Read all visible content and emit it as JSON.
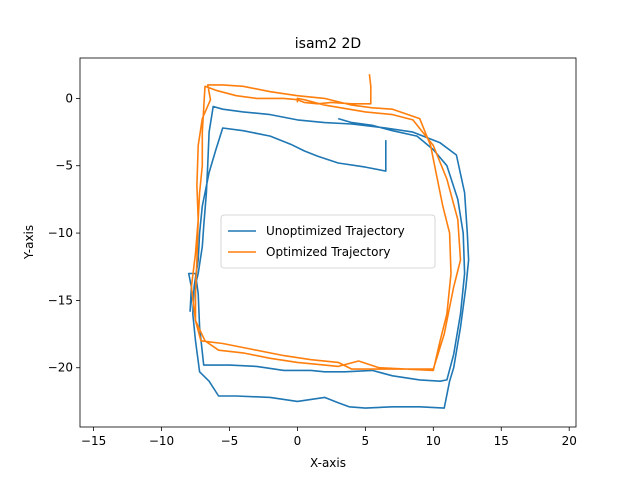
{
  "chart_data": {
    "type": "line",
    "title": "isam2 2D",
    "xlabel": "X-axis",
    "ylabel": "Y-axis",
    "xlim": [
      -16,
      20.5
    ],
    "ylim": [
      -24.4,
      3
    ],
    "xticks": [
      -15,
      -10,
      -5,
      0,
      5,
      10,
      15,
      20
    ],
    "yticks": [
      0,
      -5,
      -10,
      -15,
      -20
    ],
    "grid": false,
    "legend": {
      "position": "center"
    },
    "series": [
      {
        "name": "Unoptimized Trajectory",
        "color": "#1f77b4",
        "points": [
          [
            6.5,
            -3.1
          ],
          [
            6.5,
            -5.4
          ],
          [
            5.0,
            -5.1
          ],
          [
            3.0,
            -4.8
          ],
          [
            1.5,
            -4.3
          ],
          [
            0.5,
            -3.9
          ],
          [
            -0.5,
            -3.4
          ],
          [
            -2.0,
            -2.8
          ],
          [
            -4.0,
            -2.4
          ],
          [
            -5.5,
            -2.2
          ],
          [
            -6.0,
            -3.8
          ],
          [
            -6.5,
            -5.5
          ],
          [
            -7.0,
            -8.0
          ],
          [
            -7.2,
            -10.0
          ],
          [
            -7.3,
            -12.0
          ],
          [
            -7.6,
            -14.0
          ],
          [
            -7.7,
            -16.0
          ],
          [
            -7.5,
            -18.0
          ],
          [
            -7.2,
            -20.3
          ],
          [
            -6.5,
            -21.0
          ],
          [
            -5.8,
            -22.1
          ],
          [
            -4.5,
            -22.1
          ],
          [
            -2.0,
            -22.2
          ],
          [
            0.0,
            -22.5
          ],
          [
            2.0,
            -22.2
          ],
          [
            3.0,
            -22.6
          ],
          [
            3.8,
            -22.9
          ],
          [
            5.0,
            -23.0
          ],
          [
            7.0,
            -22.9
          ],
          [
            9.0,
            -22.9
          ],
          [
            10.8,
            -23.0
          ],
          [
            11.2,
            -21.0
          ],
          [
            11.5,
            -20.0
          ],
          [
            12.0,
            -17.0
          ],
          [
            12.4,
            -14.0
          ],
          [
            12.6,
            -12.0
          ],
          [
            12.5,
            -10.0
          ],
          [
            12.3,
            -7.0
          ],
          [
            11.7,
            -4.2
          ],
          [
            10.5,
            -3.3
          ],
          [
            8.5,
            -2.5
          ],
          [
            6.5,
            -2.2
          ],
          [
            4.0,
            -1.9
          ],
          [
            2.0,
            -1.8
          ],
          [
            0.0,
            -1.6
          ],
          [
            -2.0,
            -1.2
          ],
          [
            -4.0,
            -1.0
          ],
          [
            -5.5,
            -0.8
          ],
          [
            -6.2,
            -0.6
          ],
          [
            -6.5,
            -2.5
          ],
          [
            -6.6,
            -5.0
          ],
          [
            -6.7,
            -7.0
          ],
          [
            -6.9,
            -9.5
          ],
          [
            -7.0,
            -11.0
          ],
          [
            -7.3,
            -13.0
          ],
          [
            -7.8,
            -15.0
          ],
          [
            -7.9,
            -15.8
          ],
          [
            -7.8,
            -14.0
          ],
          [
            -8.0,
            -13.0
          ],
          [
            -7.5,
            -13.0
          ],
          [
            -7.3,
            -14.5
          ],
          [
            -7.2,
            -17.0
          ],
          [
            -6.9,
            -19.8
          ],
          [
            -5.0,
            -19.8
          ],
          [
            -3.0,
            -19.9
          ],
          [
            -1.0,
            -20.2
          ],
          [
            1.0,
            -20.2
          ],
          [
            2.0,
            -20.3
          ],
          [
            3.5,
            -20.3
          ],
          [
            5.5,
            -20.2
          ],
          [
            7.0,
            -20.6
          ],
          [
            9.0,
            -20.9
          ],
          [
            10.5,
            -21.0
          ],
          [
            11.0,
            -20.9
          ],
          [
            11.5,
            -19.0
          ],
          [
            12.0,
            -16.0
          ],
          [
            12.3,
            -13.0
          ],
          [
            12.2,
            -10.0
          ],
          [
            11.8,
            -7.5
          ],
          [
            11.0,
            -5.0
          ],
          [
            10.0,
            -3.8
          ],
          [
            8.8,
            -2.8
          ],
          [
            7.0,
            -2.4
          ],
          [
            5.5,
            -2.0
          ],
          [
            4.0,
            -1.8
          ],
          [
            3.0,
            -1.5
          ]
        ]
      },
      {
        "name": "Optimized Trajectory",
        "color": "#ff7f0e",
        "points": [
          [
            5.3,
            1.8
          ],
          [
            5.4,
            0.9
          ],
          [
            5.4,
            -0.4
          ],
          [
            4.0,
            -0.4
          ],
          [
            2.5,
            -0.3
          ],
          [
            1.5,
            -0.4
          ],
          [
            0.5,
            -0.3
          ],
          [
            0.0,
            -0.1
          ],
          [
            -1.0,
            0.0
          ],
          [
            -3.0,
            0.0
          ],
          [
            -4.5,
            0.2
          ],
          [
            -6.0,
            0.6
          ],
          [
            -6.8,
            0.9
          ],
          [
            -7.0,
            -2.5
          ],
          [
            -7.0,
            -5.0
          ],
          [
            -7.2,
            -7.0
          ],
          [
            -7.3,
            -9.0
          ],
          [
            -7.4,
            -12.0
          ],
          [
            -7.5,
            -14.5
          ],
          [
            -7.5,
            -16.5
          ],
          [
            -7.1,
            -18.0
          ],
          [
            -5.5,
            -18.2
          ],
          [
            -3.5,
            -18.6
          ],
          [
            -1.0,
            -19.1
          ],
          [
            1.0,
            -19.4
          ],
          [
            3.0,
            -19.6
          ],
          [
            4.0,
            -20.1
          ],
          [
            6.0,
            -20.1
          ],
          [
            8.0,
            -20.1
          ],
          [
            10.0,
            -20.2
          ],
          [
            10.5,
            -18.0
          ],
          [
            11.0,
            -16.0
          ],
          [
            11.3,
            -13.0
          ],
          [
            11.2,
            -10.0
          ],
          [
            10.7,
            -8.0
          ],
          [
            10.2,
            -5.5
          ],
          [
            9.8,
            -3.5
          ],
          [
            9.0,
            -1.5
          ],
          [
            7.0,
            -0.8
          ],
          [
            5.5,
            -0.7
          ],
          [
            4.0,
            -0.5
          ],
          [
            2.0,
            0.0
          ],
          [
            0.0,
            0.2
          ],
          [
            -2.0,
            0.5
          ],
          [
            -4.0,
            0.9
          ],
          [
            -5.5,
            1.0
          ],
          [
            -6.6,
            1.0
          ],
          [
            -6.4,
            -0.1
          ],
          [
            -7.0,
            -1.5
          ],
          [
            -7.3,
            -3.5
          ],
          [
            -7.4,
            -6.5
          ],
          [
            -7.3,
            -9.0
          ],
          [
            -7.5,
            -11.5
          ],
          [
            -7.8,
            -14.0
          ],
          [
            -7.5,
            -16.5
          ],
          [
            -6.8,
            -18.0
          ],
          [
            -5.8,
            -18.7
          ],
          [
            -4.0,
            -18.9
          ],
          [
            -2.0,
            -19.3
          ],
          [
            0.0,
            -19.6
          ],
          [
            2.0,
            -19.8
          ],
          [
            3.0,
            -19.9
          ],
          [
            4.5,
            -19.5
          ],
          [
            6.0,
            -20.0
          ],
          [
            8.0,
            -20.1
          ],
          [
            10.0,
            -20.1
          ],
          [
            10.8,
            -17.5
          ],
          [
            11.5,
            -14.0
          ],
          [
            12.0,
            -12.0
          ],
          [
            11.8,
            -9.0
          ],
          [
            11.0,
            -6.0
          ],
          [
            10.0,
            -3.5
          ],
          [
            8.5,
            -1.6
          ],
          [
            7.0,
            -1.2
          ],
          [
            5.0,
            -1.0
          ],
          [
            2.0,
            -0.5
          ],
          [
            0.5,
            -0.1
          ],
          [
            0.0,
            0.0
          ],
          [
            0.0,
            -0.3
          ]
        ]
      }
    ]
  }
}
